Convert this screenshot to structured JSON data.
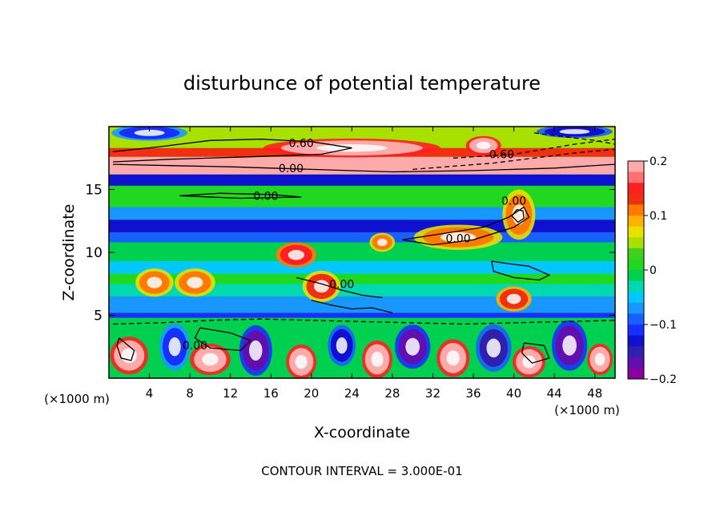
{
  "chart_data": {
    "type": "heatmap",
    "title": "disturbunce of potential temperature",
    "xlabel": "X-coordinate",
    "ylabel": "Z-coordinate",
    "x_unit": "(×1000 m)",
    "y_unit": "(×1000 m)",
    "footer": "CONTOUR INTERVAL = 3.000E-01",
    "xlim": [
      0,
      50
    ],
    "ylim": [
      0,
      20
    ],
    "x_ticks": [
      4,
      8,
      12,
      16,
      20,
      24,
      28,
      32,
      36,
      40,
      44,
      48
    ],
    "y_ticks": [
      5,
      10,
      15
    ],
    "colorbar": {
      "ticks": [
        0.2,
        0.1,
        0,
        -0.1,
        -0.2
      ],
      "tick_labels": [
        "0.2",
        "0.1",
        "0",
        "−0.1",
        "−0.2"
      ],
      "range": [
        -0.2,
        0.2
      ],
      "colors": [
        "#ffaaaa",
        "#ff7070",
        "#ff2020",
        "#f03010",
        "#ff7a00",
        "#ffb000",
        "#e8e000",
        "#a8e000",
        "#40d020",
        "#20d820",
        "#00d050",
        "#00d8b0",
        "#00c8ff",
        "#1898ff",
        "#1860ff",
        "#1830ff",
        "#1010d0",
        "#3020b0",
        "#6010b0",
        "#8a00a0"
      ]
    },
    "bands": [
      {
        "z0": 0,
        "z1": 4.8,
        "value": -0.01
      },
      {
        "z0": 4.8,
        "z1": 5.2,
        "value": -0.12
      },
      {
        "z0": 5.2,
        "z1": 6.5,
        "value": -0.07
      },
      {
        "z0": 6.5,
        "z1": 7.5,
        "value": -0.03
      },
      {
        "z0": 7.5,
        "z1": 8.3,
        "value": 0.02
      },
      {
        "z0": 8.3,
        "z1": 9.3,
        "value": -0.04
      },
      {
        "z0": 9.3,
        "z1": 10.8,
        "value": 0.0
      },
      {
        "z0": 10.8,
        "z1": 11.6,
        "value": -0.08
      },
      {
        "z0": 11.6,
        "z1": 12.6,
        "value": -0.13
      },
      {
        "z0": 12.6,
        "z1": 13.6,
        "value": -0.07
      },
      {
        "z0": 13.6,
        "z1": 15.3,
        "value": 0.01
      },
      {
        "z0": 15.3,
        "z1": 16.2,
        "value": -0.13
      },
      {
        "z0": 16.2,
        "z1": 17.6,
        "value": 0.21
      },
      {
        "z0": 17.6,
        "z1": 18.3,
        "value": 0.13
      },
      {
        "z0": 18.3,
        "z1": 20,
        "value": 0.05
      }
    ],
    "patches": [
      {
        "x": 2,
        "z": 1.8,
        "rx": 1.5,
        "rz": 1.2,
        "value": 0.21
      },
      {
        "x": 6.5,
        "z": 2.5,
        "rx": 1.2,
        "rz": 1.5,
        "value": -0.12
      },
      {
        "x": 10,
        "z": 1.5,
        "rx": 1.6,
        "rz": 1.0,
        "value": 0.21
      },
      {
        "x": 14.5,
        "z": 2.2,
        "rx": 1.3,
        "rz": 1.6,
        "value": -0.16
      },
      {
        "x": 19,
        "z": 1.3,
        "rx": 1.2,
        "rz": 1.1,
        "value": 0.21
      },
      {
        "x": 23,
        "z": 2.6,
        "rx": 1.1,
        "rz": 1.3,
        "value": -0.13
      },
      {
        "x": 26.5,
        "z": 1.5,
        "rx": 1.2,
        "rz": 1.2,
        "value": 0.21
      },
      {
        "x": 30,
        "z": 2.5,
        "rx": 1.4,
        "rz": 1.4,
        "value": -0.16
      },
      {
        "x": 34,
        "z": 1.6,
        "rx": 1.3,
        "rz": 1.2,
        "value": 0.21
      },
      {
        "x": 38,
        "z": 2.4,
        "rx": 1.4,
        "rz": 1.5,
        "value": -0.14
      },
      {
        "x": 41.5,
        "z": 1.3,
        "rx": 1.3,
        "rz": 1.0,
        "value": 0.21
      },
      {
        "x": 45.5,
        "z": 2.6,
        "rx": 1.4,
        "rz": 1.6,
        "value": -0.16
      },
      {
        "x": 48.5,
        "z": 1.5,
        "rx": 1.0,
        "rz": 1.0,
        "value": 0.21
      },
      {
        "x": 4.5,
        "z": 7.6,
        "rx": 1.5,
        "rz": 0.9,
        "value": 0.12
      },
      {
        "x": 8.5,
        "z": 7.6,
        "rx": 1.6,
        "rz": 0.9,
        "value": 0.12
      },
      {
        "x": 18.5,
        "z": 9.8,
        "rx": 1.6,
        "rz": 0.8,
        "value": 0.16
      },
      {
        "x": 21,
        "z": 7.3,
        "rx": 1.5,
        "rz": 1.0,
        "value": 0.13
      },
      {
        "x": 27,
        "z": 10.8,
        "rx": 1.0,
        "rz": 0.6,
        "value": 0.12
      },
      {
        "x": 34.5,
        "z": 11.2,
        "rx": 3.5,
        "rz": 0.8,
        "value": 0.12
      },
      {
        "x": 40.5,
        "z": 13.0,
        "rx": 1.3,
        "rz": 1.6,
        "value": 0.12
      },
      {
        "x": 40,
        "z": 6.3,
        "rx": 1.4,
        "rz": 0.8,
        "value": 0.14
      },
      {
        "x": 24,
        "z": 18.3,
        "rx": 7,
        "rz": 0.6,
        "value": 0.2
      },
      {
        "x": 37,
        "z": 18.5,
        "rx": 1.4,
        "rz": 0.6,
        "value": 0.21
      },
      {
        "x": 4,
        "z": 19.5,
        "rx": 3,
        "rz": 0.5,
        "value": -0.12
      },
      {
        "x": 46,
        "z": 19.6,
        "rx": 3,
        "rz": 0.4,
        "value": -0.13
      }
    ],
    "contour_labels": [
      {
        "text": "0.60",
        "x": 19,
        "z": 18.7
      },
      {
        "text": "0.60",
        "x": 38.8,
        "z": 17.8
      },
      {
        "text": "0.00",
        "x": 18,
        "z": 16.7
      },
      {
        "text": "0.00",
        "x": 15.5,
        "z": 14.5
      },
      {
        "text": "0.00",
        "x": 40,
        "z": 14.1
      },
      {
        "text": "0.00",
        "x": 34.5,
        "z": 11.1
      },
      {
        "text": "0.00",
        "x": 23,
        "z": 7.5
      },
      {
        "text": "0.00",
        "x": 8.5,
        "z": 2.6
      }
    ],
    "contours": [
      {
        "style": "solid",
        "points": [
          [
            0.4,
            18.0
          ],
          [
            5,
            18.4
          ],
          [
            10,
            18.9
          ],
          [
            15,
            19.0
          ],
          [
            20,
            18.8
          ],
          [
            24,
            18.3
          ],
          [
            21,
            17.8
          ],
          [
            14,
            17.6
          ],
          [
            6,
            17.4
          ],
          [
            0.4,
            17.2
          ]
        ]
      },
      {
        "style": "solid",
        "points": [
          [
            0.4,
            17.0
          ],
          [
            6,
            16.9
          ],
          [
            12,
            16.8
          ],
          [
            20,
            16.6
          ],
          [
            28,
            16.4
          ],
          [
            36,
            16.5
          ],
          [
            44,
            16.7
          ],
          [
            50,
            17.0
          ]
        ]
      },
      {
        "style": "dashed",
        "points": [
          [
            34,
            17.5
          ],
          [
            40,
            17.8
          ],
          [
            46,
            18.6
          ],
          [
            50,
            19.0
          ]
        ]
      },
      {
        "style": "dashed",
        "points": [
          [
            30,
            16.6
          ],
          [
            38,
            17.1
          ],
          [
            46,
            17.9
          ],
          [
            50,
            18.2
          ]
        ]
      },
      {
        "style": "dashed",
        "points": [
          [
            42,
            19.5
          ],
          [
            45,
            19.2
          ],
          [
            48,
            18.9
          ],
          [
            50,
            18.6
          ]
        ]
      },
      {
        "style": "solid",
        "points": [
          [
            7,
            14.5
          ],
          [
            11,
            14.7
          ],
          [
            16,
            14.6
          ],
          [
            19,
            14.4
          ],
          [
            13,
            14.3
          ],
          [
            7,
            14.5
          ]
        ]
      },
      {
        "style": "solid",
        "points": [
          [
            29,
            11.0
          ],
          [
            33,
            11.5
          ],
          [
            37,
            12.0
          ],
          [
            39.5,
            12.8
          ],
          [
            41,
            13.6
          ],
          [
            41.5,
            12.8
          ],
          [
            40,
            12.0
          ],
          [
            36,
            11.0
          ],
          [
            32,
            10.6
          ],
          [
            29,
            11.0
          ]
        ]
      },
      {
        "style": "solid",
        "points": [
          [
            39.8,
            12.9
          ],
          [
            40.3,
            13.4
          ],
          [
            40.9,
            13.3
          ],
          [
            41.0,
            12.7
          ],
          [
            40.4,
            12.4
          ],
          [
            39.8,
            12.9
          ]
        ]
      },
      {
        "style": "solid",
        "points": [
          [
            37.8,
            9.3
          ],
          [
            39.5,
            9.1
          ],
          [
            41.5,
            8.9
          ],
          [
            43.5,
            8.2
          ],
          [
            42.5,
            7.8
          ],
          [
            40,
            8.0
          ],
          [
            38,
            8.5
          ],
          [
            37.8,
            9.3
          ]
        ]
      },
      {
        "style": "solid",
        "points": [
          [
            18.5,
            8.0
          ],
          [
            21,
            7.5
          ],
          [
            23,
            7.0
          ],
          [
            25,
            6.6
          ],
          [
            27,
            6.4
          ]
        ]
      },
      {
        "style": "solid",
        "points": [
          [
            20,
            6.2
          ],
          [
            22,
            5.8
          ],
          [
            24,
            5.5
          ],
          [
            26,
            5.6
          ],
          [
            28,
            5.2
          ]
        ]
      },
      {
        "style": "dashed",
        "points": [
          [
            0.4,
            4.3
          ],
          [
            5,
            4.4
          ],
          [
            10,
            4.6
          ],
          [
            15,
            4.7
          ],
          [
            20,
            4.6
          ],
          [
            25,
            4.5
          ],
          [
            30,
            4.4
          ],
          [
            35,
            4.3
          ],
          [
            40,
            4.4
          ],
          [
            45,
            4.5
          ],
          [
            50,
            4.6
          ]
        ]
      },
      {
        "style": "solid",
        "points": [
          [
            1,
            3.2
          ],
          [
            2.5,
            2.2
          ],
          [
            2.2,
            1.4
          ],
          [
            1.2,
            1.6
          ],
          [
            0.8,
            2.6
          ],
          [
            1,
            3.2
          ]
        ]
      },
      {
        "style": "solid",
        "points": [
          [
            9,
            4.0
          ],
          [
            12,
            3.6
          ],
          [
            14,
            3.0
          ],
          [
            13,
            2.2
          ],
          [
            10,
            2.4
          ],
          [
            8.5,
            3.2
          ],
          [
            9,
            4.0
          ]
        ]
      },
      {
        "style": "solid",
        "points": [
          [
            41,
            2.8
          ],
          [
            43,
            2.6
          ],
          [
            43.5,
            1.6
          ],
          [
            41.8,
            1.2
          ],
          [
            40.8,
            2.0
          ],
          [
            41,
            2.8
          ]
        ]
      }
    ]
  }
}
